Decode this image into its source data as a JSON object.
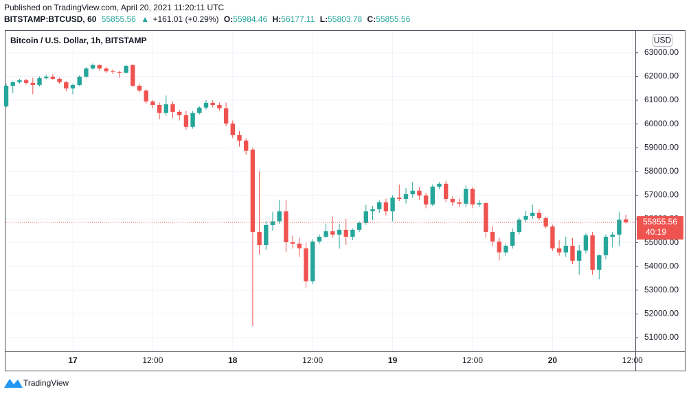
{
  "header": {
    "published": "Published on TradingView.com, April 20, 2021 11:20:11 UTC",
    "symbol": "BITSTAMP:BTCUSD, 60",
    "last": "55855.56",
    "arrow": "▲",
    "change": "+161.01 (+0.29%)",
    "ohlc": [
      {
        "key": "O:",
        "value": "55984.46"
      },
      {
        "key": "H:",
        "value": "56177.11"
      },
      {
        "key": "L:",
        "value": "55803.78"
      },
      {
        "key": "C:",
        "value": "55855.56"
      }
    ]
  },
  "footer": {
    "brand": "TradingView"
  },
  "chart_data": {
    "type": "candlestick",
    "title": "Bitcoin / U.S. Dollar, 1h, BITSTAMP",
    "currency": "USD",
    "up_color": "#26a69a",
    "down_color": "#ef5350",
    "grid": true,
    "categories": [
      null,
      null,
      null,
      null,
      null,
      null,
      null,
      null,
      null,
      null,
      "17",
      null,
      null,
      null,
      null,
      null,
      null,
      null,
      null,
      null,
      null,
      null,
      "12:00",
      null,
      null,
      null,
      null,
      null,
      null,
      null,
      null,
      null,
      null,
      null,
      "18",
      null,
      null,
      null,
      null,
      null,
      null,
      null,
      null,
      null,
      null,
      null,
      "12:00",
      null,
      null,
      null,
      null,
      null,
      null,
      null,
      null,
      null,
      null,
      null,
      "19",
      null,
      null,
      null,
      null,
      null,
      null,
      null,
      null,
      null,
      null,
      null,
      "12:00",
      null,
      null,
      null,
      null,
      null,
      null,
      null,
      null,
      null,
      null,
      null,
      "20",
      null,
      null,
      null,
      null,
      null,
      null,
      null,
      null,
      null,
      null,
      null,
      "12:00"
    ],
    "open": [
      60740,
      61610,
      61760,
      61840,
      61730,
      61640,
      61930,
      61990,
      61900,
      61760,
      61500,
      61640,
      61990,
      62340,
      62480,
      62340,
      62220,
      62190,
      62160,
      62480,
      61610,
      61410,
      60950,
      60800,
      60460,
      60830,
      60510,
      60370,
      59880,
      60460,
      60690,
      60890,
      60800,
      60660,
      60020,
      59530,
      59300,
      58920,
      55450,
      54900,
      55740,
      55900,
      56320,
      55020,
      54960,
      54760,
      53370,
      55050,
      55250,
      55480,
      55340,
      55540,
      55250,
      55540,
      55830,
      56320,
      56410,
      56700,
      56320,
      56900,
      56840,
      57040,
      57190,
      56990,
      56610,
      57360,
      57480,
      56840,
      56700,
      56640,
      57270,
      56610,
      56670,
      55450,
      55050,
      54590,
      54870,
      55450,
      55970,
      56120,
      56260,
      56030,
      55680,
      54760,
      54590,
      54870,
      54240,
      54670,
      55310,
      53860,
      54470,
      55250,
      55340,
      55984.46,
      null
    ],
    "high": [
      61700,
      61800,
      61900,
      61900,
      61950,
      62000,
      62080,
      62100,
      61960,
      61800,
      61700,
      62050,
      62400,
      62550,
      62510,
      62420,
      62300,
      62250,
      62480,
      62520,
      61700,
      61450,
      61000,
      60900,
      61200,
      60950,
      60600,
      60550,
      60550,
      60750,
      61000,
      61000,
      60900,
      60900,
      60150,
      59700,
      59400,
      59000,
      58000,
      55900,
      56300,
      56800,
      56800,
      55300,
      55200,
      55000,
      55150,
      55350,
      55800,
      56100,
      55800,
      56000,
      55600,
      55900,
      56600,
      56550,
      56800,
      56850,
      57000,
      57450,
      57300,
      57550,
      57350,
      57100,
      57450,
      57550,
      57600,
      56950,
      56850,
      57400,
      57350,
      56800,
      56700,
      55700,
      55200,
      54950,
      55600,
      56050,
      56350,
      56600,
      56400,
      56100,
      55750,
      55100,
      55250,
      55200,
      54900,
      55400,
      55450,
      54500,
      55350,
      55450,
      56300,
      56177.11,
      null
    ],
    "low": [
      60700,
      61300,
      61700,
      61650,
      61250,
      61580,
      61880,
      61860,
      61700,
      61380,
      61250,
      61600,
      61950,
      62280,
      62250,
      62150,
      62100,
      61950,
      62100,
      61550,
      61350,
      60850,
      60650,
      60200,
      60350,
      60250,
      60150,
      59750,
      59800,
      60400,
      60600,
      60700,
      60550,
      59900,
      59400,
      59050,
      58700,
      51490,
      54500,
      54700,
      55500,
      55800,
      54600,
      54750,
      54400,
      53100,
      53250,
      54950,
      55200,
      55200,
      54750,
      54900,
      55100,
      55450,
      55750,
      55950,
      56250,
      56150,
      55900,
      56750,
      56650,
      56900,
      56800,
      56450,
      56550,
      57250,
      56700,
      56550,
      56500,
      56500,
      56450,
      56500,
      55200,
      54850,
      54250,
      54450,
      54750,
      55350,
      55850,
      56000,
      55950,
      55600,
      54650,
      54450,
      54400,
      54100,
      53650,
      54550,
      53650,
      53450,
      54300,
      54800,
      54850,
      55803.78,
      null
    ],
    "close": [
      61610,
      61760,
      61840,
      61730,
      61640,
      61930,
      61990,
      61900,
      61760,
      61500,
      61640,
      61990,
      62340,
      62480,
      62340,
      62220,
      62190,
      62160,
      62450,
      61610,
      61410,
      60950,
      60800,
      60460,
      60830,
      60510,
      60370,
      59880,
      60460,
      60690,
      60890,
      60800,
      60660,
      60020,
      59530,
      59300,
      58870,
      55450,
      54900,
      55740,
      55900,
      56320,
      55020,
      54960,
      54760,
      53370,
      55050,
      55250,
      55480,
      55340,
      55540,
      55250,
      55540,
      55830,
      56320,
      56410,
      56700,
      56320,
      56900,
      56840,
      57040,
      57190,
      56990,
      56610,
      57360,
      57480,
      56840,
      56700,
      56640,
      57270,
      56610,
      56670,
      55450,
      55050,
      54590,
      54870,
      55450,
      55970,
      56120,
      56260,
      56030,
      55680,
      54760,
      54590,
      54870,
      54240,
      54670,
      55310,
      53860,
      54470,
      55250,
      55340,
      55970,
      55855.56,
      null
    ],
    "ylim": [
      50420,
      63950
    ],
    "yticks": [
      {
        "value": 51000,
        "label": "51000.00"
      },
      {
        "value": 52000,
        "label": "52000.00"
      },
      {
        "value": 53000,
        "label": "53000.00"
      },
      {
        "value": 54000,
        "label": "54000.00"
      },
      {
        "value": 55000,
        "label": "55000.00"
      },
      {
        "value": 56000,
        "label": "56000.00"
      },
      {
        "value": 57000,
        "label": "57000.00"
      },
      {
        "value": 58000,
        "label": "58000.00"
      },
      {
        "value": 59000,
        "label": "59000.00"
      },
      {
        "value": 60000,
        "label": "60000.00"
      },
      {
        "value": 61000,
        "label": "61000.00"
      },
      {
        "value": 62000,
        "label": "62000.00"
      },
      {
        "value": 63000,
        "label": "63000.00"
      }
    ],
    "price_line": 55855.56,
    "countdown": "40:19"
  }
}
